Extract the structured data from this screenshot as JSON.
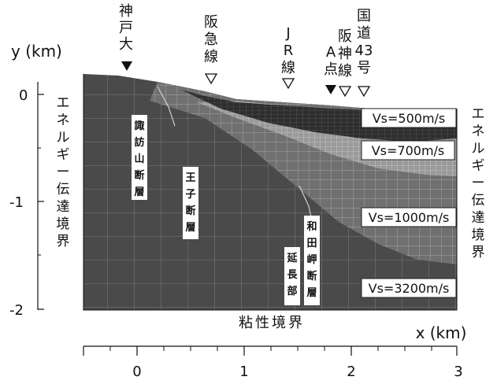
{
  "axes": {
    "y_label": "y (km)",
    "x_label": "x (km)",
    "y_ticks": [
      "0",
      "-1",
      "-2"
    ],
    "x_ticks": [
      "0",
      "1",
      "2",
      "3"
    ]
  },
  "boundaries": {
    "left": "エネルギー伝達境界",
    "right": "エネルギー伝達境界",
    "bottom": "粘性境界"
  },
  "stations": [
    {
      "label": "神戸大",
      "marker": "filled-triangle"
    },
    {
      "label": "阪急線",
      "marker": "open-triangle"
    },
    {
      "label": "JR線",
      "marker": "open-triangle"
    },
    {
      "label": "A点",
      "marker": "filled-triangle"
    },
    {
      "label": "阪神線",
      "marker": "open-triangle"
    },
    {
      "label": "国道43号",
      "marker": "open-triangle"
    }
  ],
  "faults": [
    {
      "label": "諏訪山断層"
    },
    {
      "label": "王子断層"
    },
    {
      "label": "和田岬断層"
    },
    {
      "label": "延長部"
    }
  ],
  "layers": [
    {
      "label": "Vs=500m/s",
      "color": "#2e2e2e"
    },
    {
      "label": "Vs=700m/s",
      "color": "#9a9a9a"
    },
    {
      "label": "Vs=1000m/s",
      "color": "#707070"
    },
    {
      "label": "Vs=3200m/s",
      "color": "#4a4a4a"
    }
  ],
  "colors": {
    "mesh_line": "#d8d8d8",
    "ink": "#111111"
  }
}
